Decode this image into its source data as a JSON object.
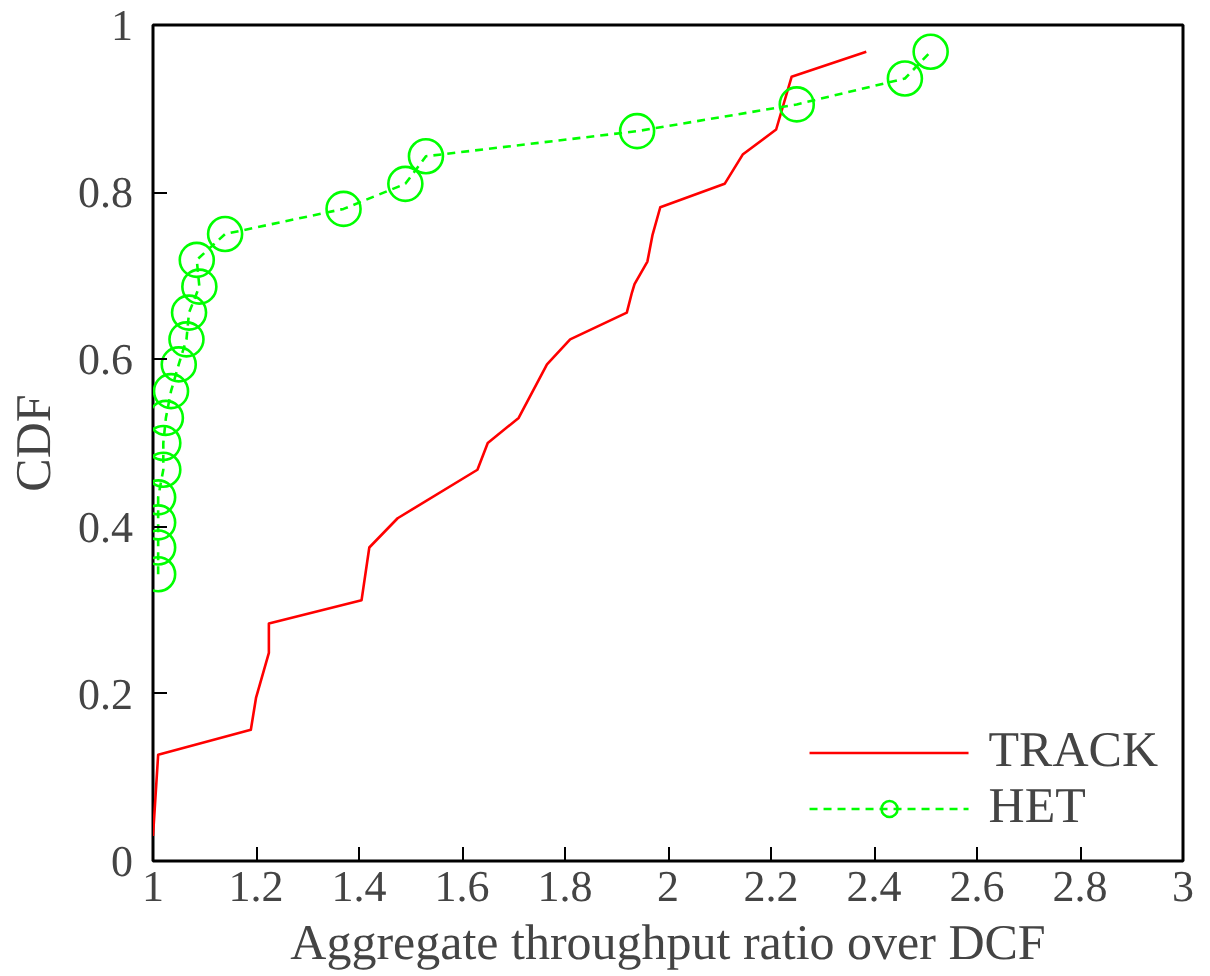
{
  "chart_data": {
    "type": "line",
    "xlabel": "Aggregate throughput ratio over DCF",
    "ylabel": "CDF",
    "xlim": [
      1,
      3
    ],
    "ylim": [
      0,
      1
    ],
    "xticks": [
      1,
      1.2,
      1.4,
      1.6,
      1.8,
      2,
      2.2,
      2.4,
      2.6,
      2.8,
      3
    ],
    "yticks": [
      0,
      0.2,
      0.4,
      0.6,
      0.8,
      1
    ],
    "grid": false,
    "legend": "bottom right",
    "series": [
      {
        "name": "TRACK",
        "color": "#ff0000",
        "line_style": "solid",
        "marker": "none",
        "x": [
          1.0,
          1.01,
          1.19,
          1.2,
          1.225,
          1.225,
          1.405,
          1.42,
          1.475,
          1.63,
          1.65,
          1.71,
          1.765,
          1.81,
          1.92,
          1.93,
          1.935,
          1.96,
          1.97,
          1.985,
          2.11,
          2.145,
          2.21,
          2.24,
          2.385
        ],
        "values": [
          0.03,
          0.127,
          0.157,
          0.195,
          0.249,
          0.284,
          0.312,
          0.375,
          0.41,
          0.468,
          0.5,
          0.53,
          0.594,
          0.624,
          0.656,
          0.68,
          0.69,
          0.717,
          0.749,
          0.782,
          0.81,
          0.845,
          0.875,
          0.938,
          0.968
        ]
      },
      {
        "name": "HET",
        "color": "#00ff00",
        "line_style": "dashed",
        "marker": "circle",
        "x": [
          1.01,
          1.01,
          1.01,
          1.01,
          1.02,
          1.02,
          1.025,
          1.035,
          1.05,
          1.065,
          1.07,
          1.09,
          1.085,
          1.14,
          1.37,
          1.49,
          1.53,
          1.94,
          2.25,
          2.46,
          2.51
        ],
        "values": [
          0.343,
          0.375,
          0.405,
          0.435,
          0.468,
          0.5,
          0.53,
          0.562,
          0.594,
          0.624,
          0.656,
          0.687,
          0.719,
          0.75,
          0.78,
          0.81,
          0.843,
          0.873,
          0.905,
          0.936,
          0.968
        ]
      }
    ]
  }
}
